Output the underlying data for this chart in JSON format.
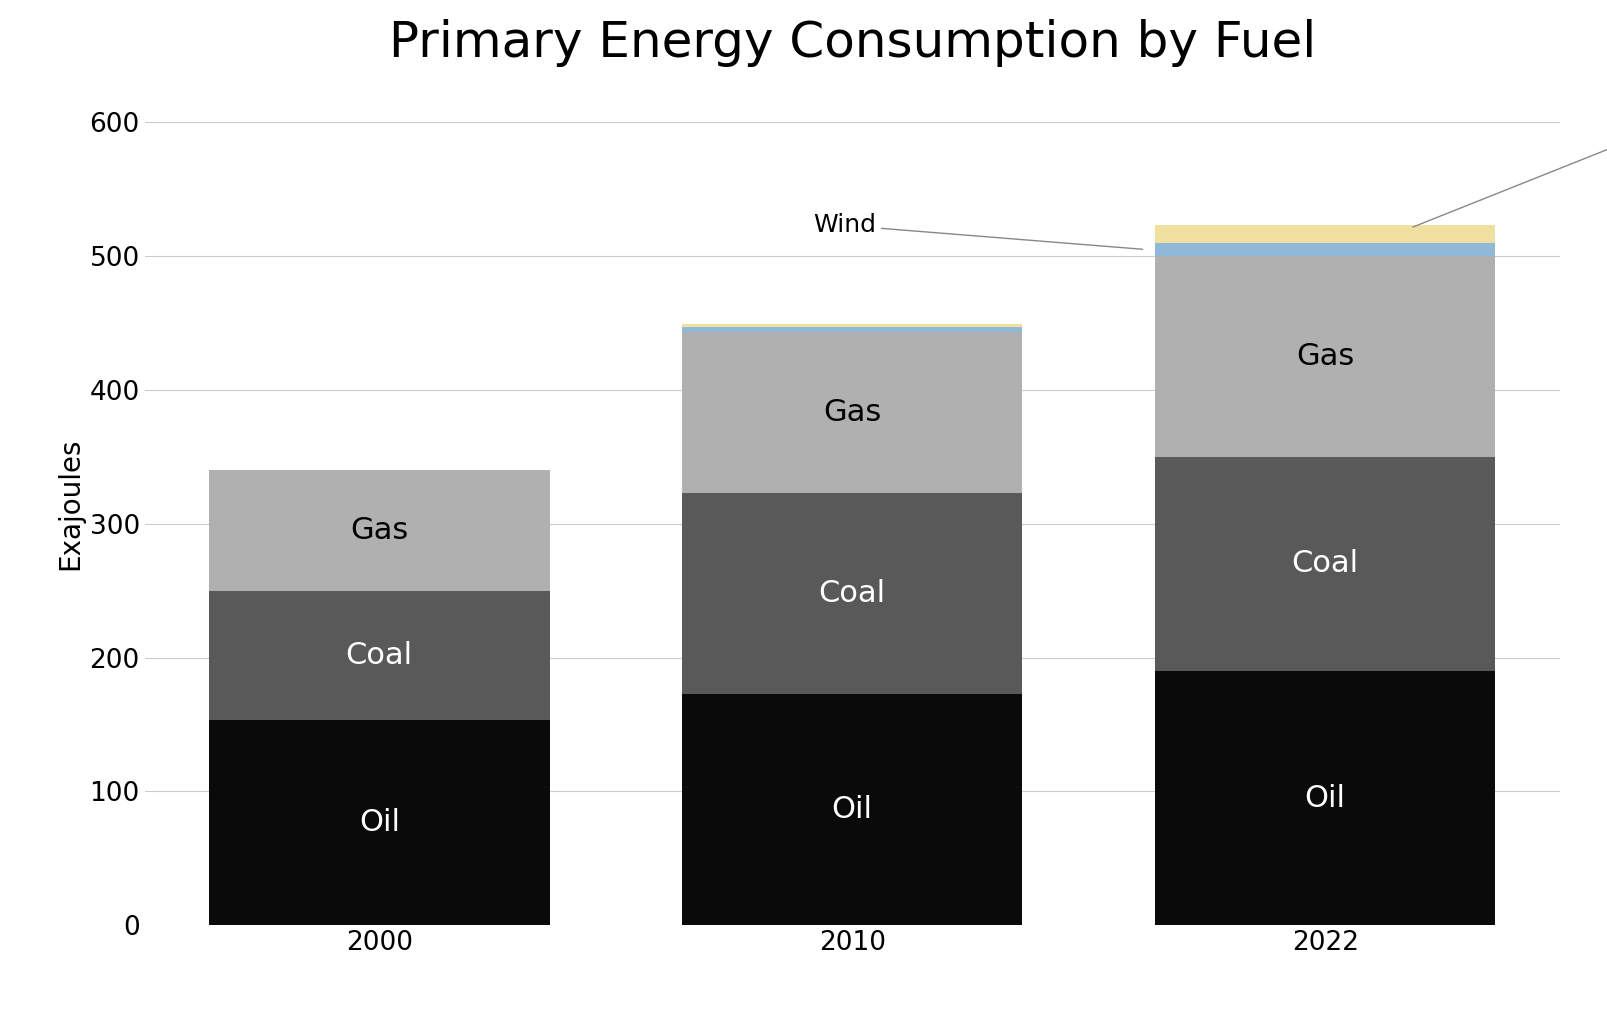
{
  "title": "Primary Energy Consumption by Fuel",
  "ylabel": "Exajoules",
  "years": [
    "2000",
    "2010",
    "2022"
  ],
  "oil": [
    153,
    173,
    190
  ],
  "coal": [
    97,
    150,
    160
  ],
  "gas": [
    90,
    120,
    150
  ],
  "wind": [
    0,
    4,
    10
  ],
  "solar": [
    0,
    2,
    13
  ],
  "colors": {
    "oil": "#0a0a0a",
    "coal": "#595959",
    "gas": "#b0b0b0",
    "wind": "#90b8d8",
    "solar": "#f0e0a0"
  },
  "bar_width": 0.72,
  "ylim": [
    0,
    630
  ],
  "yticks": [
    0,
    100,
    200,
    300,
    400,
    500,
    600
  ],
  "background_color": "#ffffff",
  "title_fontsize": 36,
  "label_fontsize": 20,
  "tick_fontsize": 19,
  "bar_label_fontsize": 22,
  "annotation_fontsize": 18
}
